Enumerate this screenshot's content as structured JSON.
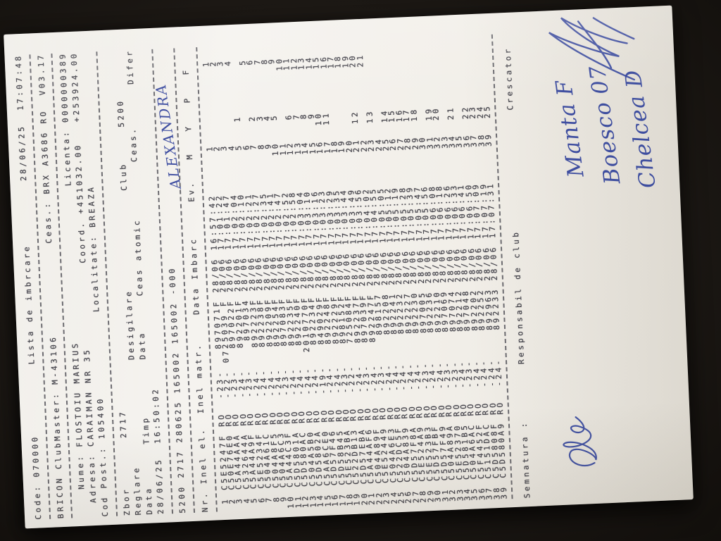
{
  "photo": {
    "background": "#161310",
    "paper_color": "#f2efe9",
    "print_ink": "#44434a",
    "pen_ink": "#31429b"
  },
  "doc": {
    "pre_lines": [
      {
        "segs": [
          [
            0,
            "Code: 070000"
          ],
          [
            22,
            "Lista de imbrcare"
          ],
          [
            48,
            "28/06/25  17:07:48"
          ]
        ]
      },
      {
        "dash": true
      },
      {
        "segs": [
          [
            0,
            "BRICON ClubMaster: M-43106"
          ],
          [
            39,
            "Ceas.: BRX A3686 RO  V03.17"
          ]
        ]
      },
      {
        "dash": true
      },
      {
        "segs": [
          [
            4,
            "Nume: FLOSTOIU MARIUS"
          ],
          [
            47,
            "Licenta: 0000000389"
          ]
        ]
      },
      {
        "segs": [
          [
            2,
            "Adresa: CARAIMAN NR 35"
          ],
          [
            36,
            "Coord. +451032.00   +253924.00"
          ]
        ]
      },
      {
        "segs": [
          [
            0,
            "Cod Post.: 105400"
          ],
          [
            29,
            "Localitate: BREAZA"
          ]
        ]
      },
      {
        "dash": true
      },
      {
        "segs": [
          [
            0,
            "Zbor"
          ],
          [
            11,
            "2717"
          ]
        ]
      },
      {
        "segs": [
          [
            0,
            "Reglare"
          ],
          [
            22,
            "Desigilare"
          ],
          [
            46,
            "Club"
          ],
          [
            55,
            "5200"
          ]
        ]
      },
      {
        "segs": [
          [
            0,
            "Data"
          ],
          [
            10,
            "Timp"
          ],
          [
            22,
            "Data"
          ],
          [
            31,
            "Ceas atomic"
          ],
          [
            50,
            "Ceas."
          ],
          [
            61,
            "Difer"
          ]
        ]
      },
      {
        "segs": [
          [
            0,
            "28/06/25"
          ],
          [
            10,
            "16:50:02"
          ]
        ]
      },
      {
        "dash": true
      },
      {
        "segs": [
          [
            0,
            "5200 2717 280625 165002 165002 -000"
          ]
        ]
      },
      {
        "dash": true
      },
      {
        "segs": [
          [
            0,
            "Nr."
          ],
          [
            4,
            "Inel el."
          ],
          [
            14,
            "Inel matr."
          ],
          [
            28,
            "Data Imbarc"
          ],
          [
            44,
            "Ev."
          ],
          [
            50,
            "M"
          ],
          [
            54,
            "Y"
          ],
          [
            58,
            "P"
          ],
          [
            62,
            "F"
          ]
        ]
      },
      {
        "dash": true
      }
    ],
    "country": "RO",
    "date_col": "28/06",
    "rows": [
      [
        "1",
        "C5E5247F",
        "-23-",
        "897071F",
        "16:57:42",
        "",
        "1"
      ],
      [
        "2",
        "C50E76E0",
        "-22-",
        "0725039 F",
        "17:01:22",
        "",
        "2"
      ],
      [
        "3",
        "C5A44AAA",
        "-23-",
        "897022F",
        "17:01:47",
        "",
        "3"
      ],
      [
        "4",
        "C532644A",
        "-24-",
        "892201F",
        "17:02:04",
        "",
        "4"
      ],
      [
        "5",
        "C5A44A9F",
        "-23-",
        "897034",
        "17:02:10",
        "1",
        ""
      ],
      [
        "6",
        "C5E5234F",
        "-24-",
        "892223F",
        "17:02:21",
        "",
        "5"
      ],
      [
        "7",
        "C504A61C",
        "-24-",
        "892238F",
        "17:02:27",
        "2",
        "6"
      ],
      [
        "8",
        "C504A8F5",
        "-24-",
        "892209F",
        "17:02:35",
        "3",
        "7"
      ],
      [
        "9",
        "C504A6C3",
        "-24-",
        "892254F",
        "17:02:41",
        "4",
        "8"
      ],
      [
        "10",
        "C5A44C3F",
        "-23-",
        "897083F",
        "17:02:47",
        "5",
        "9"
      ],
      [
        "11",
        "C5D5801A",
        "-24-",
        "892235F",
        "17:02:52",
        "",
        "10"
      ],
      [
        "12",
        "C5D580AC",
        "-24-",
        "892240F",
        "17:02:58",
        "6",
        "11"
      ],
      [
        "13",
        "C504A5B0",
        "-24-",
        "2010770F",
        "17:03:04",
        "7",
        "12"
      ],
      [
        "14",
        "C5D5802A",
        "-24-",
        "892234F",
        "17:03:10",
        "8",
        "13"
      ],
      [
        "15",
        "C5AA6CE0",
        "-19-",
        "849029F",
        "17:03:16",
        "9",
        "14"
      ],
      [
        "16",
        "C5D57F46",
        "-24-",
        "892248F",
        "17:03:23",
        "10",
        "15"
      ],
      [
        "17",
        "C5D58B45",
        "-24-",
        "892229F",
        "17:03:29",
        "11",
        "16"
      ],
      [
        "18",
        "C5E523BA",
        "-23-",
        "898152F",
        "17:03:35",
        "",
        "17"
      ],
      [
        "19",
        "C522DB13",
        "-22-",
        "725084F",
        "17:03:44",
        "",
        "18"
      ],
      [
        "20",
        "C5D57EBA",
        "-24-",
        "892237F",
        "17:03:49",
        "",
        "19"
      ],
      [
        "21",
        "C5A44AF6",
        "-23-",
        "897039F",
        "17:03:56",
        "12",
        "20"
      ],
      [
        "22",
        "C504A89F",
        "-24-",
        "892247F",
        "17:04:02",
        "",
        "21"
      ],
      [
        "23",
        "C5E52449",
        "-23-",
        "898157",
        "17:04:55",
        "13",
        ""
      ],
      [
        "24",
        "C504A6E3",
        "-24-",
        "892208",
        "17:05:05",
        "",
        ""
      ],
      [
        "25",
        "C522DC5F",
        "-24-",
        "892241",
        "17:05:12",
        "14",
        ""
      ],
      [
        "26",
        "C504A839",
        "-24-",
        "892232",
        "17:05:19",
        "15",
        ""
      ],
      [
        "27",
        "C5D57F8A",
        "-24-",
        "892227",
        "17:05:28",
        "16",
        ""
      ],
      [
        "28",
        "C5E524A9",
        "-24-",
        "892230",
        "17:05:39",
        "17",
        ""
      ],
      [
        "29",
        "C5E523B3",
        "-23-",
        "897005",
        "17:05:47",
        "18",
        ""
      ],
      [
        "30",
        "C5D57FBF",
        "-24-",
        "892236",
        "17:05:56",
        "",
        ""
      ],
      [
        "31",
        "C5D57F49",
        "-24-",
        "892210",
        "17:06:08",
        "19",
        ""
      ],
      [
        "32",
        "C504A89A",
        "-23-",
        "897069",
        "17:06:18",
        "20",
        ""
      ],
      [
        "33",
        "C5E52370",
        "-23-",
        "897074",
        "17:06:26",
        "",
        ""
      ],
      [
        "34",
        "C5D581B5",
        "-24-",
        "892212",
        "17:06:33",
        "21",
        ""
      ],
      [
        "35",
        "C504A6AC",
        "-23-",
        "897048",
        "17:06:41",
        "",
        ""
      ],
      [
        "36",
        "C5F4452F",
        "-24-",
        "892202",
        "17:06:50",
        "22",
        ""
      ],
      [
        "37",
        "C5151DAC",
        "-24-",
        "892252",
        "17:07:09",
        "23",
        ""
      ],
      [
        "38",
        "C5D5808F",
        "-24-",
        "892963",
        "17:07:19",
        "24",
        ""
      ],
      [
        "39",
        "C5D580A9",
        "-24-",
        "892233",
        "17:07:31",
        "25",
        ""
      ]
    ],
    "footer_segs": [
      [
        0,
        "Semnatura :"
      ],
      [
        19,
        "Responsabil de club"
      ],
      [
        55,
        "Crescator"
      ]
    ]
  },
  "handwriting": {
    "note": "ALEXANDRA",
    "name1": "Manta F",
    "name2": "Boesco 07",
    "name3": "Chelcea D"
  }
}
